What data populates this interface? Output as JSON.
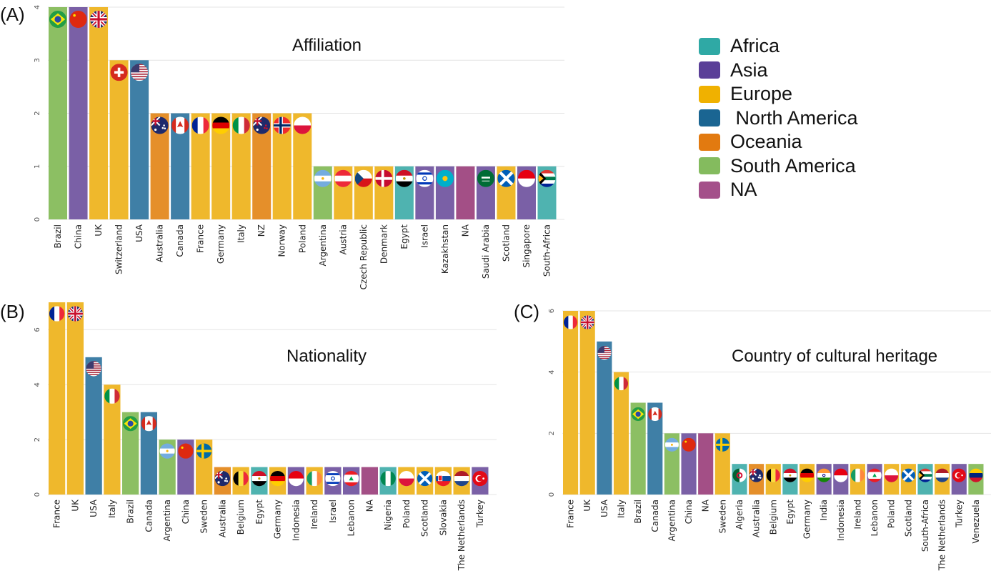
{
  "continents": {
    "Africa": "#4fb3b0",
    "Asia": "#7a60a6",
    "Europe": "#efb82c",
    "North America": "#3f7fa6",
    "Oceania": "#e58f2a",
    "South America": "#8cbf63",
    "NA": "#a34f86"
  },
  "legend": {
    "items": [
      {
        "label": "Africa",
        "color": "#2fa9a5"
      },
      {
        "label": "Asia",
        "color": "#5a3f98"
      },
      {
        "label": "Europe",
        "color": "#f0b100"
      },
      {
        "label": " North America",
        "color": "#1a6592"
      },
      {
        "label": "Oceania",
        "color": "#e27a10"
      },
      {
        "label": "South America",
        "color": "#84bb5e"
      },
      {
        "label": "NA",
        "color": "#a4508a"
      }
    ]
  },
  "chart_data": [
    {
      "panel": "(A)",
      "type": "bar",
      "title": "Affiliation",
      "xlabel": "",
      "ylabel": "",
      "ylim": [
        0,
        4
      ],
      "yticks": [
        0,
        1,
        2,
        3,
        4
      ],
      "grid": true,
      "legend": "right",
      "categories": [
        "Brazil",
        "China",
        "UK",
        "Switzerland",
        "USA",
        "Australia",
        "Canada",
        "France",
        "Germany",
        "Italy",
        "NZ",
        "Norway",
        "Poland",
        "Argentina",
        "Austria",
        "Czech Republic",
        "Denmark",
        "Egypt",
        "Israel",
        "Kazakhstan",
        "NA",
        "Saudi Arabia",
        "Scotland",
        "Singapore",
        "South-Africa"
      ],
      "values": [
        4,
        4,
        4,
        3,
        3,
        2,
        2,
        2,
        2,
        2,
        2,
        2,
        2,
        1,
        1,
        1,
        1,
        1,
        1,
        1,
        1,
        1,
        1,
        1,
        1
      ],
      "continent": [
        "South America",
        "Asia",
        "Europe",
        "Europe",
        "North America",
        "Oceania",
        "North America",
        "Europe",
        "Europe",
        "Europe",
        "Oceania",
        "Europe",
        "Europe",
        "South America",
        "Europe",
        "Europe",
        "Europe",
        "Africa",
        "Asia",
        "Asia",
        "NA",
        "Asia",
        "Europe",
        "Asia",
        "Africa"
      ]
    },
    {
      "panel": "(B)",
      "type": "bar",
      "title": "Nationality",
      "xlabel": "",
      "ylabel": "",
      "ylim": [
        0,
        7
      ],
      "yticks": [
        0,
        2,
        4,
        6
      ],
      "grid": true,
      "categories": [
        "France",
        "UK",
        "USA",
        "Italy",
        "Brazil",
        "Canada",
        "Argentina",
        "China",
        "Sweden",
        "Australia",
        "Belgium",
        "Egypt",
        "Germany",
        "Indonesia",
        "Ireland",
        "Israel",
        "Lebanon",
        "NA",
        "Nigeria",
        "Poland",
        "Scotland",
        "Slovakia",
        "The Netherlands",
        "Turkey"
      ],
      "values": [
        7,
        7,
        5,
        4,
        3,
        3,
        2,
        2,
        2,
        1,
        1,
        1,
        1,
        1,
        1,
        1,
        1,
        1,
        1,
        1,
        1,
        1,
        1,
        1
      ],
      "continent": [
        "Europe",
        "Europe",
        "North America",
        "Europe",
        "South America",
        "North America",
        "South America",
        "Asia",
        "Europe",
        "Oceania",
        "Europe",
        "Africa",
        "Europe",
        "Asia",
        "Europe",
        "Asia",
        "Asia",
        "NA",
        "Africa",
        "Europe",
        "Europe",
        "Europe",
        "Europe",
        "Asia"
      ]
    },
    {
      "panel": "(C)",
      "type": "bar",
      "title": "Country of cultural heritage",
      "xlabel": "",
      "ylabel": "",
      "ylim": [
        0,
        6
      ],
      "yticks": [
        0,
        2,
        4,
        6
      ],
      "grid": true,
      "categories": [
        "France",
        "UK",
        "USA",
        "Italy",
        "Brazil",
        "Canada",
        "Argentina",
        "China",
        "NA",
        "Sweden",
        "Algeria",
        "Australia",
        "Belgium",
        "Egypt",
        "Germany",
        "India",
        "Indonesia",
        "Ireland",
        "Lebanon",
        "Poland",
        "Scotland",
        "South-Africa",
        "The Netherlands",
        "Turkey",
        "Venezuela"
      ],
      "values": [
        6,
        6,
        5,
        4,
        3,
        3,
        2,
        2,
        2,
        2,
        1,
        1,
        1,
        1,
        1,
        1,
        1,
        1,
        1,
        1,
        1,
        1,
        1,
        1,
        1
      ],
      "continent": [
        "Europe",
        "Europe",
        "North America",
        "Europe",
        "South America",
        "North America",
        "South America",
        "Asia",
        "NA",
        "Europe",
        "Africa",
        "Oceania",
        "Europe",
        "Africa",
        "Europe",
        "Asia",
        "Asia",
        "Europe",
        "Asia",
        "Europe",
        "Europe",
        "Africa",
        "Europe",
        "Asia",
        "South America"
      ]
    }
  ],
  "flags": {
    "Brazil": "brazil-flag",
    "China": "china-flag",
    "UK": "uk-flag",
    "Switzerland": "switzerland-flag",
    "USA": "usa-flag",
    "Australia": "australia-flag",
    "Canada": "canada-flag",
    "France": "france-flag",
    "Germany": "germany-flag",
    "Italy": "italy-flag",
    "NZ": "nz-flag",
    "Norway": "norway-flag",
    "Poland": "poland-flag",
    "Argentina": "argentina-flag",
    "Austria": "austria-flag",
    "Czech Republic": "czech-flag",
    "Denmark": "denmark-flag",
    "Egypt": "egypt-flag",
    "Israel": "israel-flag",
    "Kazakhstan": "kazakhstan-flag",
    "Saudi Arabia": "saudi-flag",
    "Scotland": "scotland-flag",
    "Singapore": "singapore-flag",
    "South-Africa": "south-africa-flag",
    "Sweden": "sweden-flag",
    "Belgium": "belgium-flag",
    "Indonesia": "indonesia-flag",
    "Ireland": "ireland-flag",
    "Lebanon": "lebanon-flag",
    "Nigeria": "nigeria-flag",
    "Slovakia": "slovakia-flag",
    "The Netherlands": "netherlands-flag",
    "Turkey": "turkey-flag",
    "Algeria": "algeria-flag",
    "India": "india-flag",
    "Venezuela": "venezuela-flag"
  }
}
